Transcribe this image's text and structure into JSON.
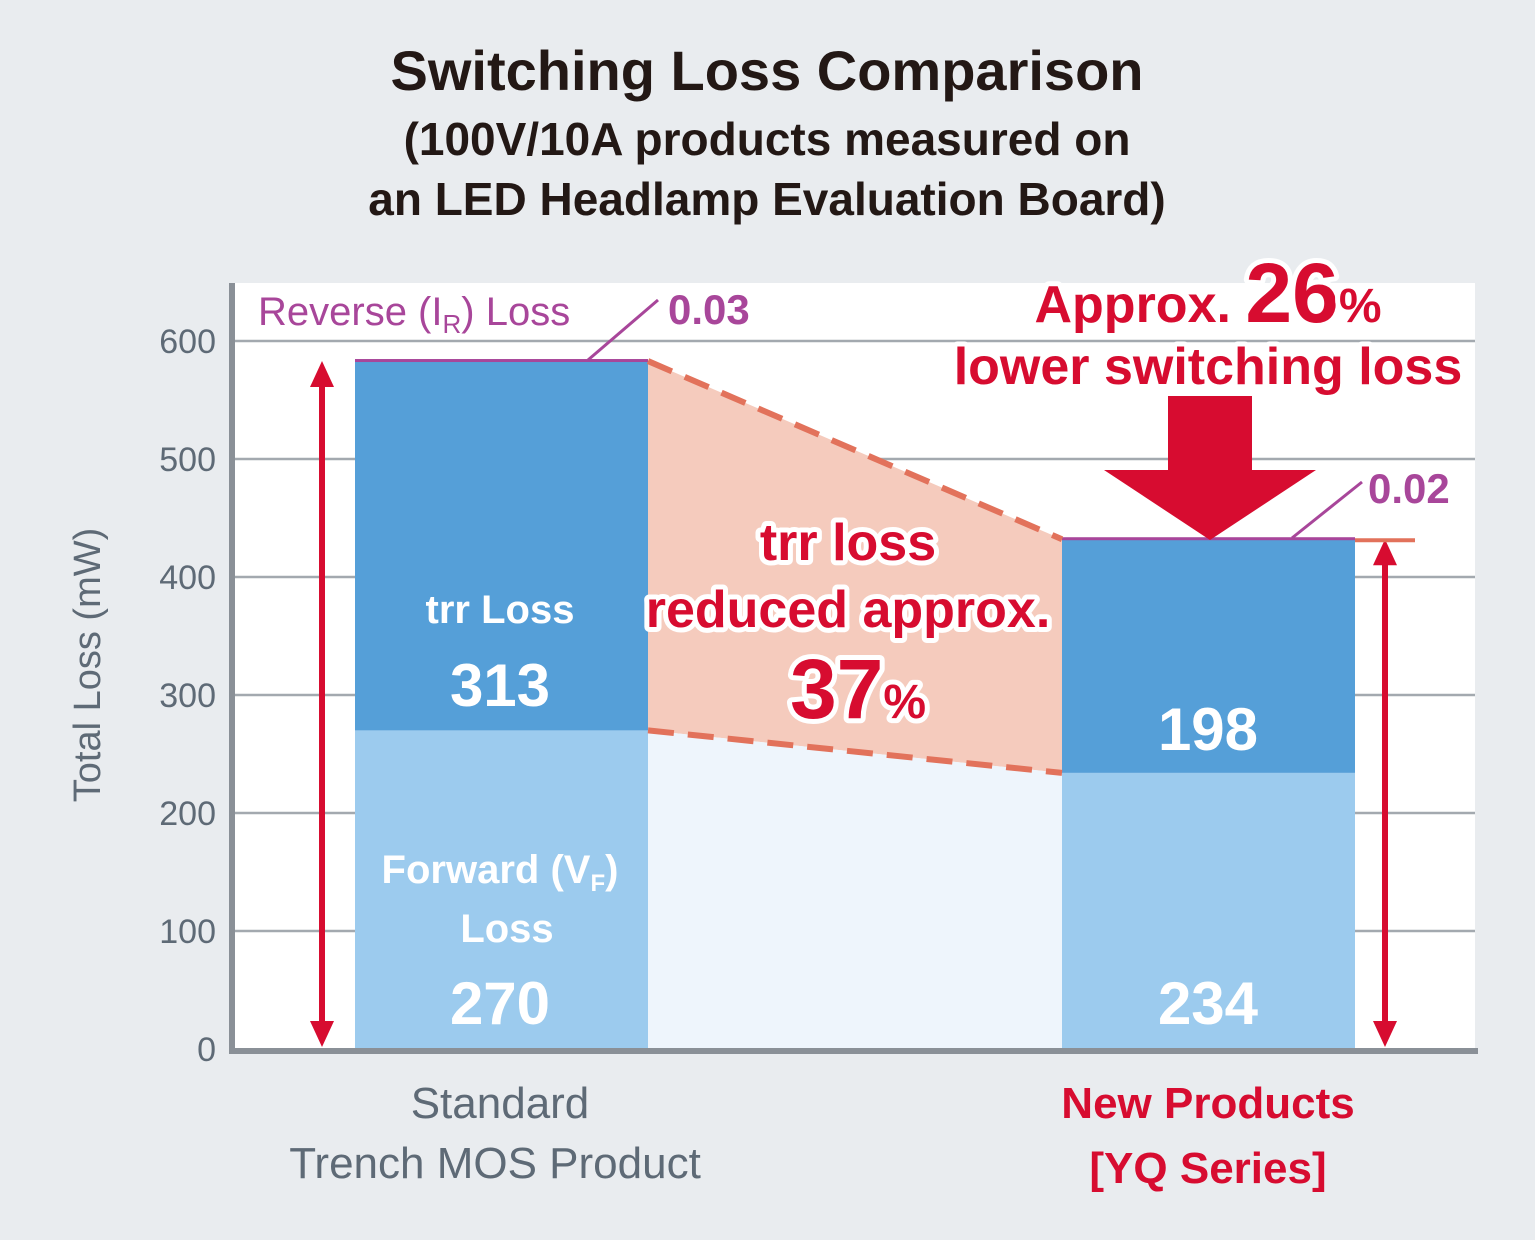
{
  "title": "Switching Loss Comparison",
  "subtitle_line1": "(100V/10A products measured on",
  "subtitle_line2": "an LED Headlamp Evaluation Board)",
  "chart_data": {
    "type": "bar",
    "stacked": true,
    "title": "Switching Loss Comparison",
    "subtitle": "(100V/10A products measured on an LED Headlamp Evaluation Board)",
    "ylabel": "Total Loss (mW)",
    "ylim": [
      0,
      650
    ],
    "yticks": [
      0,
      100,
      200,
      300,
      400,
      500,
      600
    ],
    "grid": true,
    "categories": [
      "Standard Trench MOS Product",
      "New Products [YQ Series]"
    ],
    "category_lines": [
      [
        "Standard",
        "Trench MOS Product"
      ],
      [
        "New Products",
        "[YQ Series]"
      ]
    ],
    "series": [
      {
        "name": "Forward (VF) Loss",
        "values": [
          270,
          234
        ],
        "color": "#9ccbee"
      },
      {
        "name": "trr Loss",
        "values": [
          313,
          198
        ],
        "color": "#559fd8"
      },
      {
        "name": "Reverse (IR) Loss",
        "values": [
          0.03,
          0.02
        ],
        "color": "#a8469a"
      }
    ],
    "labels": {
      "forward_name_1": "Forward (V",
      "forward_name_sub": "F",
      "forward_name_2": ")",
      "forward_name_line2": "Loss",
      "trr_name": "trr Loss",
      "reverse_name_1": "Reverse (I",
      "reverse_name_sub": "R",
      "reverse_name_2": ") Loss",
      "reverse_val_standard": "0.03",
      "reverse_val_new": "0.02"
    },
    "annotations": {
      "trr_reduction_line1": "trr loss",
      "trr_reduction_line2": "reduced approx.",
      "trr_reduction_value": "37",
      "trr_reduction_unit": "%",
      "total_reduction_prefix": "Approx. ",
      "total_reduction_value": "26",
      "total_reduction_unit": "%",
      "total_reduction_line2": "lower switching loss"
    },
    "colors": {
      "forward": "#9ccbee",
      "trr": "#559fd8",
      "reverse": "#a8469a",
      "highlight": "#d70c30",
      "reduction_band": "#f5cbbd",
      "dashed_line": "#e2725b",
      "plot_bg": "#ffffff",
      "page_bg": "#e9ecef"
    }
  }
}
